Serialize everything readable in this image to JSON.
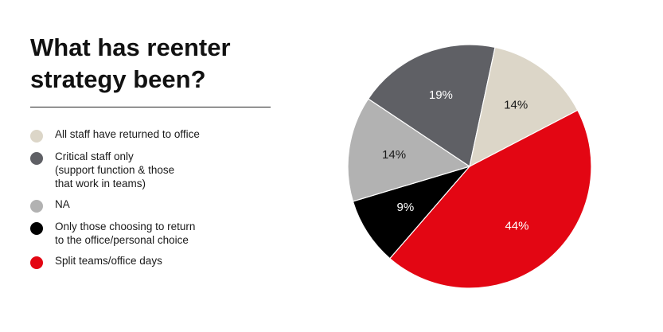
{
  "title": "What has reenter strategy been?",
  "chart_data": {
    "type": "pie",
    "title": "What has reenter strategy been?",
    "slices": [
      {
        "label": "Split teams/office days",
        "value": 44,
        "display": "44%",
        "color": "#e30613",
        "text_color": "#ffffff"
      },
      {
        "label": "Only those choosing to return\nto the office/personal choice",
        "value": 9,
        "display": "9%",
        "color": "#000000",
        "text_color": "#ffffff"
      },
      {
        "label": "NA",
        "value": 14,
        "display": "14%",
        "color": "#b2b2b2",
        "text_color": "#1a1a1a"
      },
      {
        "label": "Critical staff only\n(support function & those\nthat work in teams)",
        "value": 19,
        "display": "19%",
        "color": "#5f6065",
        "text_color": "#ffffff"
      },
      {
        "label": "All staff have returned to office",
        "value": 14,
        "display": "14%",
        "color": "#dcd6c8",
        "text_color": "#1a1a1a"
      }
    ],
    "legend_order": [
      4,
      3,
      2,
      1,
      0
    ],
    "legend_position": "left"
  }
}
